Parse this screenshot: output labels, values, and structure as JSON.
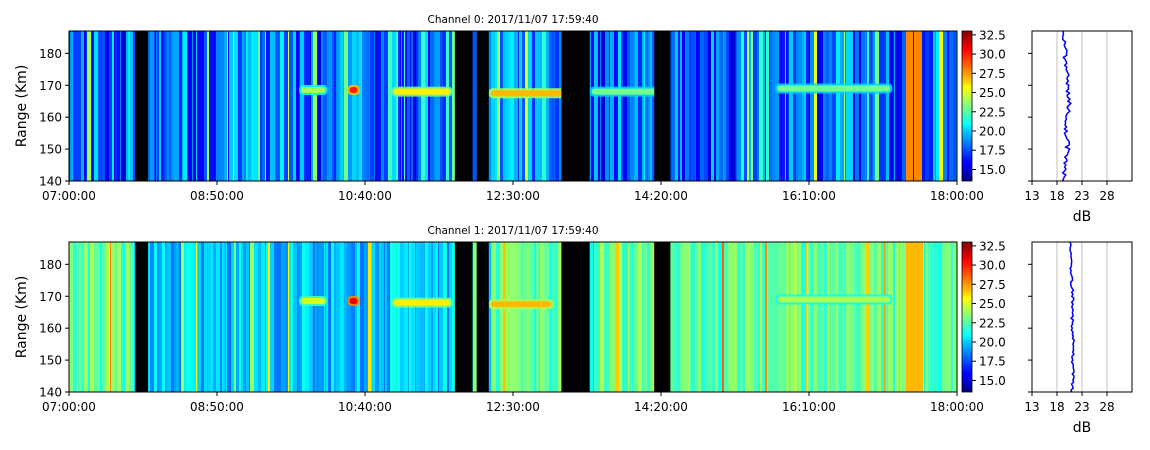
{
  "chart_data": [
    {
      "type": "heatmap",
      "title": "Channel 0: 2017/11/07 17:59:40",
      "ylabel": "Range (Km)",
      "xlabel": "",
      "x_tick_labels": [
        "07:00:00",
        "08:50:00",
        "10:40:00",
        "12:30:00",
        "14:20:00",
        "16:10:00",
        "18:00:00"
      ],
      "x_range": [
        "07:00:00",
        "18:00:00"
      ],
      "y_ticks": [
        140,
        150,
        160,
        170,
        180
      ],
      "ylim": [
        140,
        187
      ],
      "colorbar": {
        "ticks": [
          "15.0",
          "17.5",
          "20.0",
          "22.5",
          "25.0",
          "27.5",
          "30.0",
          "32.5"
        ],
        "range": [
          13.5,
          33.0
        ],
        "colormap": "jet"
      },
      "data_gaps_hours": [
        [
          7.82,
          7.98
        ],
        [
          11.78,
          12.0
        ],
        [
          12.05,
          12.2
        ],
        [
          13.1,
          13.45
        ],
        [
          14.25,
          14.45
        ]
      ],
      "echo_bands": [
        {
          "start_hours": 9.85,
          "end_hours": 10.2,
          "range_km": 168.5,
          "level_db": 24
        },
        {
          "start_hours": 10.45,
          "end_hours": 10.6,
          "range_km": 168.5,
          "level_db": 30
        },
        {
          "start_hours": 11.0,
          "end_hours": 11.75,
          "range_km": 168,
          "level_db": 26
        },
        {
          "start_hours": 12.2,
          "end_hours": 13.4,
          "range_km": 167.5,
          "level_db": 27
        },
        {
          "start_hours": 13.45,
          "end_hours": 14.3,
          "range_km": 168,
          "level_db": 23
        },
        {
          "start_hours": 15.75,
          "end_hours": 17.2,
          "range_km": 169,
          "level_db": 23
        }
      ],
      "profile": {
        "xlabel": "dB",
        "x_ticks": [
          13,
          18,
          23,
          28
        ],
        "xlim": [
          13,
          33
        ],
        "points": [
          [
            19.3,
            140
          ],
          [
            19.8,
            145
          ],
          [
            20.2,
            150
          ],
          [
            19.8,
            155
          ],
          [
            20.0,
            160
          ],
          [
            20.4,
            165
          ],
          [
            20.2,
            170
          ],
          [
            19.8,
            175
          ],
          [
            19.6,
            180
          ],
          [
            19.2,
            187
          ]
        ]
      }
    },
    {
      "type": "heatmap",
      "title": "Channel 1: 2017/11/07 17:59:40",
      "ylabel": "Range (Km)",
      "xlabel": "",
      "x_tick_labels": [
        "07:00:00",
        "08:50:00",
        "10:40:00",
        "12:30:00",
        "14:20:00",
        "16:10:00",
        "18:00:00"
      ],
      "x_range": [
        "07:00:00",
        "18:00:00"
      ],
      "y_ticks": [
        140,
        150,
        160,
        170,
        180
      ],
      "ylim": [
        140,
        187
      ],
      "colorbar": {
        "ticks": [
          "15.0",
          "17.5",
          "20.0",
          "22.5",
          "25.0",
          "27.5",
          "30.0",
          "32.5"
        ],
        "range": [
          13.5,
          33.0
        ],
        "colormap": "jet"
      },
      "data_gaps_hours": [
        [
          7.82,
          7.98
        ],
        [
          11.78,
          12.0
        ],
        [
          12.05,
          12.2
        ],
        [
          13.1,
          13.45
        ],
        [
          14.25,
          14.45
        ]
      ],
      "echo_bands": [
        {
          "start_hours": 9.85,
          "end_hours": 10.2,
          "range_km": 168.5,
          "level_db": 25
        },
        {
          "start_hours": 10.45,
          "end_hours": 10.6,
          "range_km": 168.5,
          "level_db": 31
        },
        {
          "start_hours": 11.0,
          "end_hours": 11.75,
          "range_km": 168,
          "level_db": 26
        },
        {
          "start_hours": 12.2,
          "end_hours": 13.0,
          "range_km": 167.5,
          "level_db": 27
        },
        {
          "start_hours": 15.75,
          "end_hours": 17.2,
          "range_km": 169,
          "level_db": 24
        }
      ],
      "profile": {
        "xlabel": "dB",
        "x_ticks": [
          13,
          18,
          23,
          28
        ],
        "xlim": [
          13,
          33
        ],
        "points": [
          [
            21.0,
            140
          ],
          [
            21.3,
            145
          ],
          [
            21.1,
            150
          ],
          [
            21.3,
            155
          ],
          [
            21.0,
            160
          ],
          [
            21.1,
            165
          ],
          [
            21.2,
            170
          ],
          [
            20.9,
            175
          ],
          [
            20.8,
            180
          ],
          [
            20.6,
            187
          ]
        ]
      }
    }
  ]
}
